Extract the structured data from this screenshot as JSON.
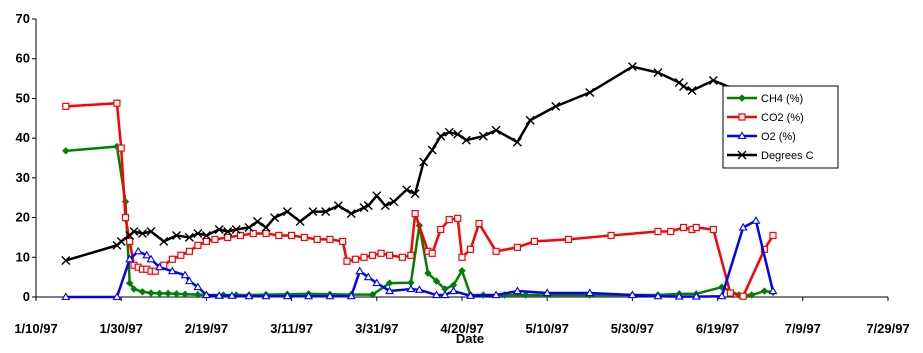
{
  "chart_data": {
    "type": "line",
    "title": "",
    "xlabel": "Date",
    "ylabel": "",
    "ylim": [
      0,
      70
    ],
    "yticks": [
      0,
      10,
      20,
      30,
      40,
      50,
      60,
      70
    ],
    "xticks": [
      "1/10/97",
      "1/30/97",
      "2/19/97",
      "3/11/97",
      "3/31/97",
      "4/20/97",
      "5/10/97",
      "5/30/97",
      "6/19/97",
      "7/9/97",
      "7/29/97"
    ],
    "xlim": [
      "1997-01-10",
      "1997-07-29"
    ],
    "grid": false,
    "legend_position": "right",
    "series": [
      {
        "name": "CH4 (%)",
        "color": "#008000",
        "marker": "diamond",
        "x": [
          "1997-01-17",
          "1997-01-29",
          "1997-01-31",
          "1997-02-01",
          "1997-02-02",
          "1997-02-04",
          "1997-02-06",
          "1997-02-08",
          "1997-02-10",
          "1997-02-12",
          "1997-02-14",
          "1997-02-17",
          "1997-02-19",
          "1997-02-23",
          "1997-02-26",
          "1997-03-01",
          "1997-03-05",
          "1997-03-10",
          "1997-03-15",
          "1997-03-20",
          "1997-03-25",
          "1997-03-30",
          "1997-04-03",
          "1997-04-08",
          "1997-04-10",
          "1997-04-12",
          "1997-04-14",
          "1997-04-16",
          "1997-04-18",
          "1997-04-20",
          "1997-04-22",
          "1997-04-25",
          "1997-04-30",
          "1997-05-05",
          "1997-05-10",
          "1997-05-20",
          "1997-05-30",
          "1997-06-05",
          "1997-06-10",
          "1997-06-14",
          "1997-06-20",
          "1997-06-24",
          "1997-06-27",
          "1997-06-30",
          "1997-07-02"
        ],
        "values": [
          36.8,
          37.9,
          24.0,
          3.5,
          2.0,
          1.3,
          1.0,
          0.9,
          0.9,
          0.8,
          0.7,
          0.6,
          0.5,
          0.5,
          0.5,
          0.5,
          0.6,
          0.7,
          0.8,
          0.7,
          0.6,
          0.6,
          3.5,
          3.6,
          18.0,
          6.0,
          4.0,
          2.0,
          3.0,
          6.6,
          0.5,
          0.5,
          0.5,
          0.5,
          0.5,
          0.5,
          0.5,
          0.5,
          0.8,
          0.8,
          2.5,
          0.5,
          0.5,
          1.5,
          1.2
        ]
      },
      {
        "name": "CO2 (%)",
        "color": "#ff0000",
        "marker": "square",
        "x": [
          "1997-01-17",
          "1997-01-29",
          "1997-01-30",
          "1997-01-31",
          "1997-02-01",
          "1997-02-02",
          "1997-02-03",
          "1997-02-04",
          "1997-02-05",
          "1997-02-06",
          "1997-02-07",
          "1997-02-09",
          "1997-02-11",
          "1997-02-13",
          "1997-02-15",
          "1997-02-17",
          "1997-02-19",
          "1997-02-21",
          "1997-02-24",
          "1997-02-27",
          "1997-03-02",
          "1997-03-05",
          "1997-03-08",
          "1997-03-11",
          "1997-03-14",
          "1997-03-17",
          "1997-03-20",
          "1997-03-23",
          "1997-03-24",
          "1997-03-26",
          "1997-03-28",
          "1997-03-30",
          "1997-04-01",
          "1997-04-03",
          "1997-04-06",
          "1997-04-08",
          "1997-04-09",
          "1997-04-12",
          "1997-04-13",
          "1997-04-15",
          "1997-04-17",
          "1997-04-19",
          "1997-04-20",
          "1997-04-22",
          "1997-04-24",
          "1997-04-28",
          "1997-05-03",
          "1997-05-07",
          "1997-05-15",
          "1997-05-25",
          "1997-06-05",
          "1997-06-08",
          "1997-06-11",
          "1997-06-13",
          "1997-06-14",
          "1997-06-18",
          "1997-06-22",
          "1997-06-25",
          "1997-06-30",
          "1997-07-02"
        ],
        "values": [
          48.0,
          48.8,
          37.5,
          20.0,
          14.0,
          8.0,
          7.5,
          7.0,
          7.0,
          6.5,
          6.5,
          8.0,
          9.5,
          10.5,
          11.5,
          13.0,
          14.0,
          14.5,
          15.0,
          15.5,
          16.0,
          16.0,
          15.5,
          15.5,
          15.0,
          14.5,
          14.5,
          14.0,
          9.0,
          9.5,
          10.0,
          10.5,
          11.0,
          10.5,
          10.0,
          10.5,
          21.0,
          11.5,
          11.0,
          17.0,
          19.5,
          19.8,
          10.0,
          12.0,
          18.5,
          11.5,
          12.5,
          14.0,
          14.5,
          15.5,
          16.5,
          16.5,
          17.5,
          17.0,
          17.5,
          17.0,
          1.0,
          0.2,
          12.0,
          15.5
        ]
      },
      {
        "name": "O2 (%)",
        "color": "#0000ff",
        "marker": "triangle",
        "x": [
          "1997-01-17",
          "1997-01-29",
          "1997-02-01",
          "1997-02-03",
          "1997-02-05",
          "1997-02-06",
          "1997-02-08",
          "1997-02-11",
          "1997-02-14",
          "1997-02-15",
          "1997-02-17",
          "1997-02-19",
          "1997-02-22",
          "1997-02-25",
          "1997-03-01",
          "1997-03-05",
          "1997-03-10",
          "1997-03-15",
          "1997-03-20",
          "1997-03-25",
          "1997-03-27",
          "1997-03-29",
          "1997-03-31",
          "1997-04-03",
          "1997-04-08",
          "1997-04-10",
          "1997-04-14",
          "1997-04-16",
          "1997-04-18",
          "1997-04-22",
          "1997-04-28",
          "1997-05-03",
          "1997-05-10",
          "1997-05-20",
          "1997-05-30",
          "1997-06-05",
          "1997-06-10",
          "1997-06-14",
          "1997-06-20",
          "1997-06-25",
          "1997-06-28",
          "1997-07-02"
        ],
        "values": [
          0.0,
          0.0,
          9.5,
          11.5,
          10.5,
          9.5,
          7.5,
          6.5,
          5.5,
          4.0,
          2.5,
          0.5,
          0.3,
          0.3,
          0.2,
          0.2,
          0.2,
          0.2,
          0.2,
          0.2,
          6.5,
          5.0,
          3.5,
          1.5,
          2.0,
          1.8,
          0.5,
          0.5,
          1.5,
          0.3,
          0.5,
          1.5,
          1.0,
          1.0,
          0.5,
          0.2,
          0.1,
          0.1,
          0.2,
          17.5,
          19.2,
          1.5
        ]
      },
      {
        "name": "Degrees C",
        "color": "#000000",
        "marker": "x",
        "x": [
          "1997-01-17",
          "1997-01-29",
          "1997-01-30",
          "1997-02-01",
          "1997-02-02",
          "1997-02-04",
          "1997-02-06",
          "1997-02-09",
          "1997-02-12",
          "1997-02-15",
          "1997-02-17",
          "1997-02-19",
          "1997-02-22",
          "1997-02-24",
          "1997-02-26",
          "1997-03-01",
          "1997-03-03",
          "1997-03-05",
          "1997-03-07",
          "1997-03-10",
          "1997-03-13",
          "1997-03-16",
          "1997-03-19",
          "1997-03-22",
          "1997-03-25",
          "1997-03-28",
          "1997-03-29",
          "1997-03-31",
          "1997-04-02",
          "1997-04-04",
          "1997-04-07",
          "1997-04-09",
          "1997-04-11",
          "1997-04-13",
          "1997-04-15",
          "1997-04-17",
          "1997-04-19",
          "1997-04-21",
          "1997-04-25",
          "1997-04-28",
          "1997-05-03",
          "1997-05-06",
          "1997-05-12",
          "1997-05-20",
          "1997-05-30",
          "1997-06-05",
          "1997-06-10",
          "1997-06-11",
          "1997-06-13",
          "1997-06-18",
          "1997-06-25",
          "1997-06-30"
        ],
        "values": [
          9.2,
          13.0,
          14.0,
          15.5,
          16.5,
          16.0,
          16.5,
          14.0,
          15.5,
          15.0,
          16.0,
          15.5,
          17.0,
          16.5,
          17.0,
          17.5,
          19.0,
          17.5,
          20.0,
          21.5,
          19.0,
          21.5,
          21.5,
          23.0,
          21.0,
          22.5,
          23.0,
          25.5,
          23.0,
          24.0,
          27.0,
          26.0,
          34.0,
          37.0,
          40.5,
          41.5,
          41.0,
          39.5,
          40.5,
          42.0,
          39.0,
          44.5,
          48.0,
          51.5,
          58.0,
          56.5,
          54.0,
          53.0,
          52.0,
          54.5,
          51.5,
          52.0
        ]
      }
    ]
  }
}
